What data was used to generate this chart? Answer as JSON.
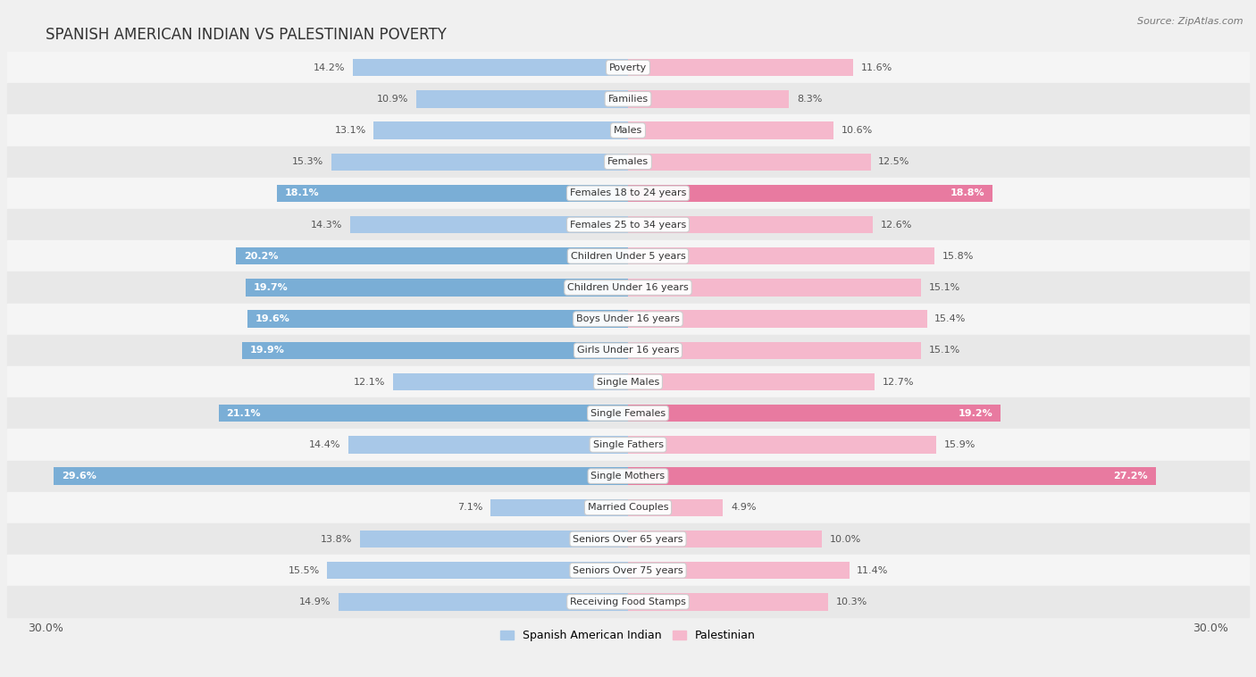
{
  "title": "SPANISH AMERICAN INDIAN VS PALESTINIAN POVERTY",
  "source": "Source: ZipAtlas.com",
  "categories": [
    "Poverty",
    "Families",
    "Males",
    "Females",
    "Females 18 to 24 years",
    "Females 25 to 34 years",
    "Children Under 5 years",
    "Children Under 16 years",
    "Boys Under 16 years",
    "Girls Under 16 years",
    "Single Males",
    "Single Females",
    "Single Fathers",
    "Single Mothers",
    "Married Couples",
    "Seniors Over 65 years",
    "Seniors Over 75 years",
    "Receiving Food Stamps"
  ],
  "spanish_values": [
    14.2,
    10.9,
    13.1,
    15.3,
    18.1,
    14.3,
    20.2,
    19.7,
    19.6,
    19.9,
    12.1,
    21.1,
    14.4,
    29.6,
    7.1,
    13.8,
    15.5,
    14.9
  ],
  "palestinian_values": [
    11.6,
    8.3,
    10.6,
    12.5,
    18.8,
    12.6,
    15.8,
    15.1,
    15.4,
    15.1,
    12.7,
    19.2,
    15.9,
    27.2,
    4.9,
    10.0,
    11.4,
    10.3
  ],
  "spanish_color_normal": "#a8c8e8",
  "spanish_color_highlight": "#7aaed6",
  "palestinian_color_normal": "#f5b8cc",
  "palestinian_color_highlight": "#e87aa0",
  "highlight_threshold": 17.0,
  "background_color": "#f0f0f0",
  "row_bg_odd": "#f5f5f5",
  "row_bg_even": "#e8e8e8",
  "x_max": 30.0,
  "legend_label_spanish": "Spanish American Indian",
  "legend_label_palestinian": "Palestinian",
  "title_fontsize": 12,
  "source_fontsize": 8,
  "axis_label_fontsize": 9,
  "bar_label_fontsize_inside": 8,
  "bar_label_fontsize_outside": 8,
  "category_fontsize": 8
}
